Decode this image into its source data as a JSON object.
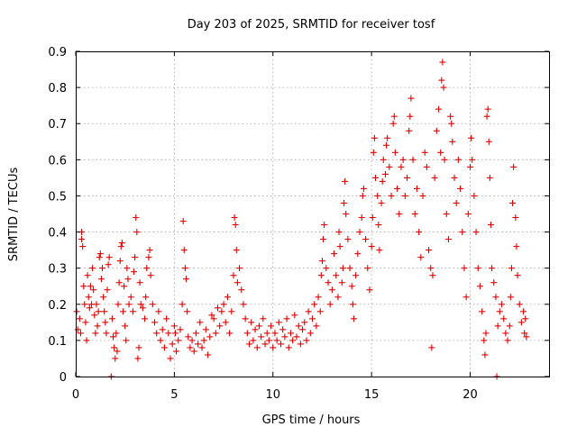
{
  "chart_data": {
    "type": "scatter",
    "title": "Day 203 of 2025, SRMTID for receiver tosf",
    "xlabel": "GPS time / hours",
    "ylabel": "SRMTID / TECUs",
    "xlim": [
      0,
      24
    ],
    "ylim": [
      0,
      0.9
    ],
    "xticks": [
      0,
      5,
      10,
      15,
      20
    ],
    "xtick_labels": [
      "0",
      "5",
      "10",
      "15",
      "20"
    ],
    "yticks": [
      0,
      0.1,
      0.2,
      0.3,
      0.4,
      0.5,
      0.6,
      0.7,
      0.8,
      0.9
    ],
    "ytick_labels": [
      "0",
      "0.1",
      "0.2",
      "0.3",
      "0.4",
      "0.5",
      "0.6",
      "0.7",
      "0.8",
      "0.9"
    ],
    "grid": true,
    "marker": "plus",
    "color": "#e00000",
    "series": [
      {
        "name": "SRMTID",
        "points": [
          [
            0.05,
            0.18
          ],
          [
            0.1,
            0.13
          ],
          [
            0.2,
            0.16
          ],
          [
            0.25,
            0.12
          ],
          [
            0.3,
            0.38
          ],
          [
            0.3,
            0.4
          ],
          [
            0.35,
            0.36
          ],
          [
            0.4,
            0.25
          ],
          [
            0.45,
            0.2
          ],
          [
            0.5,
            0.15
          ],
          [
            0.55,
            0.1
          ],
          [
            0.6,
            0.28
          ],
          [
            0.65,
            0.22
          ],
          [
            0.7,
            0.19
          ],
          [
            0.75,
            0.25
          ],
          [
            0.8,
            0.2
          ],
          [
            0.85,
            0.3
          ],
          [
            0.9,
            0.24
          ],
          [
            0.95,
            0.17
          ],
          [
            1.0,
            0.12
          ],
          [
            1.05,
            0.2
          ],
          [
            1.1,
            0.14
          ],
          [
            1.15,
            0.18
          ],
          [
            1.2,
            0.33
          ],
          [
            1.25,
            0.34
          ],
          [
            1.3,
            0.27
          ],
          [
            1.35,
            0.3
          ],
          [
            1.4,
            0.22
          ],
          [
            1.45,
            0.18
          ],
          [
            1.5,
            0.15
          ],
          [
            1.55,
            0.12
          ],
          [
            1.6,
            0.24
          ],
          [
            1.65,
            0.31
          ],
          [
            1.7,
            0.33
          ],
          [
            1.8,
            0.0
          ],
          [
            1.85,
            0.16
          ],
          [
            1.9,
            0.11
          ],
          [
            1.95,
            0.08
          ],
          [
            2.0,
            0.05
          ],
          [
            2.05,
            0.12
          ],
          [
            2.1,
            0.07
          ],
          [
            2.15,
            0.2
          ],
          [
            2.2,
            0.26
          ],
          [
            2.25,
            0.32
          ],
          [
            2.3,
            0.36
          ],
          [
            2.35,
            0.37
          ],
          [
            2.4,
            0.18
          ],
          [
            2.45,
            0.25
          ],
          [
            2.5,
            0.14
          ],
          [
            2.55,
            0.1
          ],
          [
            2.6,
            0.3
          ],
          [
            2.65,
            0.27
          ],
          [
            2.7,
            0.2
          ],
          [
            2.8,
            0.22
          ],
          [
            2.9,
            0.18
          ],
          [
            2.95,
            0.29
          ],
          [
            3.0,
            0.33
          ],
          [
            3.05,
            0.44
          ],
          [
            3.1,
            0.4
          ],
          [
            3.15,
            0.05
          ],
          [
            3.2,
            0.08
          ],
          [
            3.25,
            0.26
          ],
          [
            3.3,
            0.2
          ],
          [
            3.4,
            0.19
          ],
          [
            3.5,
            0.16
          ],
          [
            3.55,
            0.22
          ],
          [
            3.6,
            0.3
          ],
          [
            3.7,
            0.33
          ],
          [
            3.75,
            0.35
          ],
          [
            3.8,
            0.28
          ],
          [
            3.9,
            0.2
          ],
          [
            4.0,
            0.15
          ],
          [
            4.1,
            0.12
          ],
          [
            4.2,
            0.18
          ],
          [
            4.3,
            0.1
          ],
          [
            4.4,
            0.13
          ],
          [
            4.5,
            0.08
          ],
          [
            4.6,
            0.16
          ],
          [
            4.7,
            0.12
          ],
          [
            4.8,
            0.05
          ],
          [
            4.9,
            0.09
          ],
          [
            5.0,
            0.14
          ],
          [
            5.05,
            0.12
          ],
          [
            5.1,
            0.07
          ],
          [
            5.2,
            0.1
          ],
          [
            5.3,
            0.13
          ],
          [
            5.4,
            0.2
          ],
          [
            5.45,
            0.43
          ],
          [
            5.5,
            0.35
          ],
          [
            5.55,
            0.3
          ],
          [
            5.6,
            0.27
          ],
          [
            5.65,
            0.18
          ],
          [
            5.7,
            0.11
          ],
          [
            5.8,
            0.08
          ],
          [
            5.9,
            0.1
          ],
          [
            6.0,
            0.07
          ],
          [
            6.1,
            0.12
          ],
          [
            6.2,
            0.09
          ],
          [
            6.3,
            0.15
          ],
          [
            6.4,
            0.08
          ],
          [
            6.5,
            0.1
          ],
          [
            6.6,
            0.13
          ],
          [
            6.7,
            0.06
          ],
          [
            6.8,
            0.11
          ],
          [
            6.9,
            0.17
          ],
          [
            7.0,
            0.16
          ],
          [
            7.1,
            0.12
          ],
          [
            7.2,
            0.19
          ],
          [
            7.3,
            0.14
          ],
          [
            7.4,
            0.18
          ],
          [
            7.5,
            0.2
          ],
          [
            7.6,
            0.15
          ],
          [
            7.7,
            0.22
          ],
          [
            7.8,
            0.12
          ],
          [
            7.9,
            0.18
          ],
          [
            8.0,
            0.28
          ],
          [
            8.05,
            0.44
          ],
          [
            8.1,
            0.42
          ],
          [
            8.15,
            0.35
          ],
          [
            8.2,
            0.26
          ],
          [
            8.3,
            0.3
          ],
          [
            8.4,
            0.24
          ],
          [
            8.5,
            0.2
          ],
          [
            8.6,
            0.16
          ],
          [
            8.7,
            0.12
          ],
          [
            8.8,
            0.09
          ],
          [
            8.9,
            0.15
          ],
          [
            9.0,
            0.1
          ],
          [
            9.1,
            0.13
          ],
          [
            9.2,
            0.08
          ],
          [
            9.3,
            0.14
          ],
          [
            9.4,
            0.11
          ],
          [
            9.5,
            0.16
          ],
          [
            9.6,
            0.09
          ],
          [
            9.7,
            0.12
          ],
          [
            9.8,
            0.1
          ],
          [
            9.9,
            0.14
          ],
          [
            10.0,
            0.08
          ],
          [
            10.1,
            0.12
          ],
          [
            10.2,
            0.1
          ],
          [
            10.3,
            0.15
          ],
          [
            10.4,
            0.09
          ],
          [
            10.5,
            0.13
          ],
          [
            10.6,
            0.11
          ],
          [
            10.7,
            0.16
          ],
          [
            10.8,
            0.08
          ],
          [
            10.9,
            0.12
          ],
          [
            11.0,
            0.1
          ],
          [
            11.1,
            0.17
          ],
          [
            11.2,
            0.11
          ],
          [
            11.3,
            0.14
          ],
          [
            11.4,
            0.09
          ],
          [
            11.5,
            0.13
          ],
          [
            11.6,
            0.15
          ],
          [
            11.7,
            0.1
          ],
          [
            11.8,
            0.18
          ],
          [
            11.9,
            0.12
          ],
          [
            12.0,
            0.16
          ],
          [
            12.1,
            0.2
          ],
          [
            12.2,
            0.14
          ],
          [
            12.3,
            0.22
          ],
          [
            12.4,
            0.18
          ],
          [
            12.45,
            0.28
          ],
          [
            12.5,
            0.32
          ],
          [
            12.55,
            0.38
          ],
          [
            12.6,
            0.42
          ],
          [
            12.7,
            0.3
          ],
          [
            12.8,
            0.26
          ],
          [
            12.9,
            0.2
          ],
          [
            13.0,
            0.24
          ],
          [
            13.1,
            0.34
          ],
          [
            13.2,
            0.28
          ],
          [
            13.3,
            0.22
          ],
          [
            13.35,
            0.4
          ],
          [
            13.4,
            0.36
          ],
          [
            13.5,
            0.26
          ],
          [
            13.55,
            0.3
          ],
          [
            13.6,
            0.48
          ],
          [
            13.65,
            0.54
          ],
          [
            13.7,
            0.45
          ],
          [
            13.8,
            0.38
          ],
          [
            13.9,
            0.3
          ],
          [
            14.0,
            0.25
          ],
          [
            14.05,
            0.2
          ],
          [
            14.1,
            0.16
          ],
          [
            14.2,
            0.28
          ],
          [
            14.3,
            0.34
          ],
          [
            14.4,
            0.4
          ],
          [
            14.5,
            0.44
          ],
          [
            14.55,
            0.5
          ],
          [
            14.6,
            0.52
          ],
          [
            14.7,
            0.38
          ],
          [
            14.8,
            0.3
          ],
          [
            14.9,
            0.24
          ],
          [
            15.0,
            0.36
          ],
          [
            15.05,
            0.44
          ],
          [
            15.1,
            0.62
          ],
          [
            15.15,
            0.66
          ],
          [
            15.2,
            0.55
          ],
          [
            15.3,
            0.5
          ],
          [
            15.35,
            0.42
          ],
          [
            15.4,
            0.35
          ],
          [
            15.5,
            0.48
          ],
          [
            15.55,
            0.54
          ],
          [
            15.6,
            0.6
          ],
          [
            15.7,
            0.56
          ],
          [
            15.75,
            0.64
          ],
          [
            15.8,
            0.66
          ],
          [
            15.9,
            0.58
          ],
          [
            16.0,
            0.5
          ],
          [
            16.1,
            0.7
          ],
          [
            16.15,
            0.72
          ],
          [
            16.2,
            0.62
          ],
          [
            16.3,
            0.52
          ],
          [
            16.4,
            0.45
          ],
          [
            16.5,
            0.58
          ],
          [
            16.6,
            0.6
          ],
          [
            16.7,
            0.5
          ],
          [
            16.8,
            0.55
          ],
          [
            16.9,
            0.68
          ],
          [
            16.95,
            0.72
          ],
          [
            17.0,
            0.77
          ],
          [
            17.1,
            0.6
          ],
          [
            17.2,
            0.45
          ],
          [
            17.3,
            0.52
          ],
          [
            17.4,
            0.4
          ],
          [
            17.5,
            0.33
          ],
          [
            17.6,
            0.5
          ],
          [
            17.7,
            0.62
          ],
          [
            17.8,
            0.58
          ],
          [
            17.9,
            0.35
          ],
          [
            18.0,
            0.3
          ],
          [
            18.05,
            0.08
          ],
          [
            18.1,
            0.28
          ],
          [
            18.2,
            0.55
          ],
          [
            18.3,
            0.68
          ],
          [
            18.4,
            0.74
          ],
          [
            18.5,
            0.62
          ],
          [
            18.55,
            0.82
          ],
          [
            18.6,
            0.87
          ],
          [
            18.65,
            0.8
          ],
          [
            18.7,
            0.6
          ],
          [
            18.8,
            0.45
          ],
          [
            18.9,
            0.38
          ],
          [
            19.0,
            0.72
          ],
          [
            19.05,
            0.7
          ],
          [
            19.1,
            0.65
          ],
          [
            19.2,
            0.55
          ],
          [
            19.3,
            0.48
          ],
          [
            19.4,
            0.6
          ],
          [
            19.5,
            0.52
          ],
          [
            19.6,
            0.4
          ],
          [
            19.7,
            0.3
          ],
          [
            19.8,
            0.22
          ],
          [
            19.9,
            0.45
          ],
          [
            20.0,
            0.58
          ],
          [
            20.05,
            0.66
          ],
          [
            20.1,
            0.6
          ],
          [
            20.2,
            0.5
          ],
          [
            20.3,
            0.4
          ],
          [
            20.4,
            0.3
          ],
          [
            20.5,
            0.25
          ],
          [
            20.6,
            0.18
          ],
          [
            20.7,
            0.1
          ],
          [
            20.75,
            0.06
          ],
          [
            20.8,
            0.12
          ],
          [
            20.85,
            0.72
          ],
          [
            20.9,
            0.74
          ],
          [
            20.95,
            0.65
          ],
          [
            21.0,
            0.55
          ],
          [
            21.05,
            0.42
          ],
          [
            21.1,
            0.3
          ],
          [
            21.2,
            0.26
          ],
          [
            21.3,
            0.22
          ],
          [
            21.35,
            0.0
          ],
          [
            21.4,
            0.14
          ],
          [
            21.5,
            0.18
          ],
          [
            21.6,
            0.2
          ],
          [
            21.7,
            0.16
          ],
          [
            21.8,
            0.12
          ],
          [
            21.9,
            0.1
          ],
          [
            22.0,
            0.14
          ],
          [
            22.05,
            0.22
          ],
          [
            22.1,
            0.3
          ],
          [
            22.15,
            0.48
          ],
          [
            22.2,
            0.58
          ],
          [
            22.3,
            0.44
          ],
          [
            22.35,
            0.36
          ],
          [
            22.4,
            0.28
          ],
          [
            22.5,
            0.2
          ],
          [
            22.6,
            0.15
          ],
          [
            22.7,
            0.18
          ],
          [
            22.75,
            0.12
          ],
          [
            22.8,
            0.16
          ],
          [
            22.85,
            0.11
          ]
        ]
      }
    ]
  }
}
